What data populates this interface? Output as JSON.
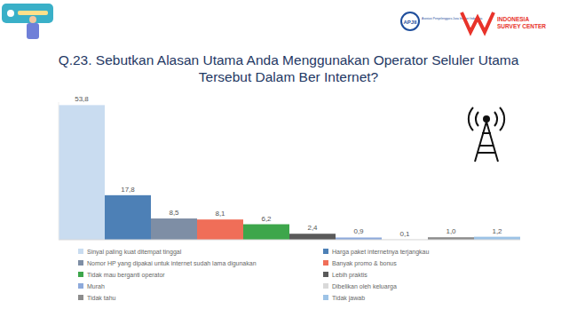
{
  "header": {
    "logo_left": "APJII",
    "logo_left_sub": "Asosiasi Penyelenggara Jasa Internet Indonesia",
    "logo_right_1": "INDONESIA",
    "logo_right_2": "SURVEY CENTER"
  },
  "chart_data": {
    "type": "bar",
    "title": "Q.23. Sebutkan Alasan Utama Anda Menggunakan Operator Seluler Utama Tersebut Dalam Ber Internet?",
    "categories": [
      "Sinyal paling kuat ditempat tinggal",
      "Harga paket internetnya terjangkau",
      "Nomor HP yang dipakai untuk internet sudah lama digunakan",
      "Banyak promo & bonus",
      "Tidak mau berganti operator",
      "Lebih praktis",
      "Murah",
      "Dibelikan oleh keluarga",
      "Tidak tahu",
      "Tidak jawab"
    ],
    "values": [
      53.8,
      17.8,
      8.5,
      8.1,
      6.2,
      2.4,
      0.9,
      0.1,
      1.0,
      1.2
    ],
    "value_labels": [
      "53,8",
      "17,8",
      "8,5",
      "8,1",
      "6,2",
      "2,4",
      "0,9",
      "0,1",
      "1,0",
      "1,2"
    ],
    "colors": [
      "#c9dcf0",
      "#4d80b6",
      "#7e8ea5",
      "#f06e58",
      "#3da64b",
      "#5a5a5a",
      "#8eaadb",
      "#d9d9d9",
      "#8c8c8c",
      "#9dc3e6"
    ],
    "ylim": [
      0,
      55
    ],
    "data_labels": true,
    "tick_labels": false,
    "grid": false
  }
}
